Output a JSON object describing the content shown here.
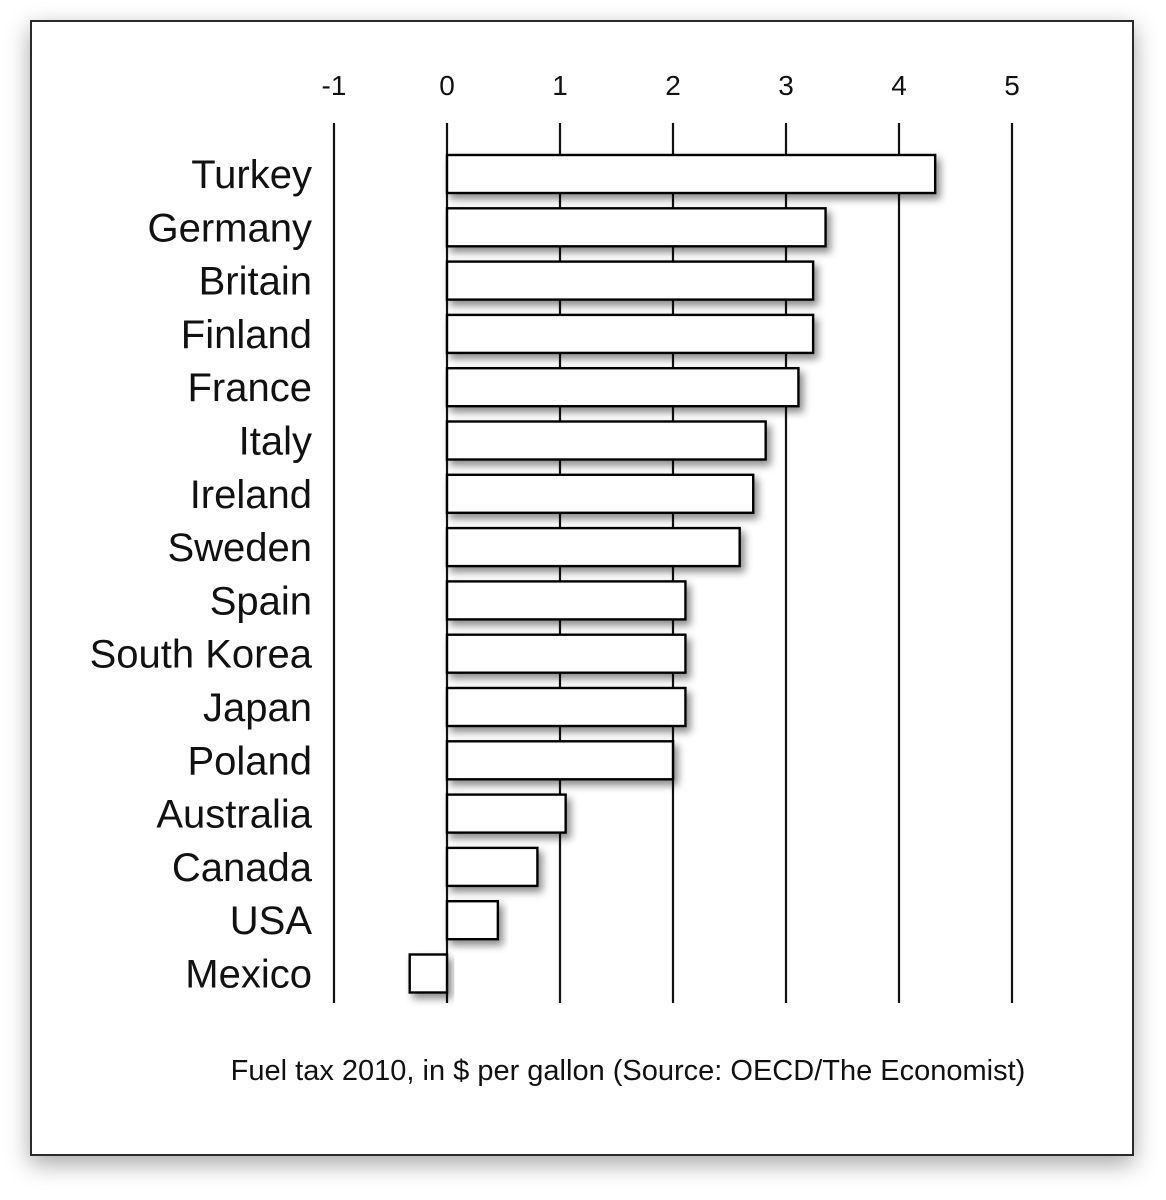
{
  "chart_data": {
    "type": "bar",
    "orientation": "horizontal",
    "categories": [
      "Turkey",
      "Germany",
      "Britain",
      "Finland",
      "France",
      "Italy",
      "Ireland",
      "Sweden",
      "Spain",
      "South Korea",
      "Japan",
      "Poland",
      "Australia",
      "Canada",
      "USA",
      "Mexico"
    ],
    "values": [
      4.32,
      3.35,
      3.24,
      3.24,
      3.11,
      2.82,
      2.71,
      2.59,
      2.11,
      2.11,
      2.11,
      2.0,
      1.05,
      0.8,
      0.45,
      -0.33
    ],
    "xticks": [
      -1,
      0,
      1,
      2,
      3,
      4,
      5
    ],
    "xlim": [
      -1,
      5
    ],
    "caption": "Fuel tax 2010, in $ per gallon (Source: OECD/The Economist)",
    "grid": true,
    "axis_position": "top",
    "colors": {
      "bar_fill": "#ffffff",
      "bar_stroke": "#000000",
      "grid": "#111111"
    }
  }
}
